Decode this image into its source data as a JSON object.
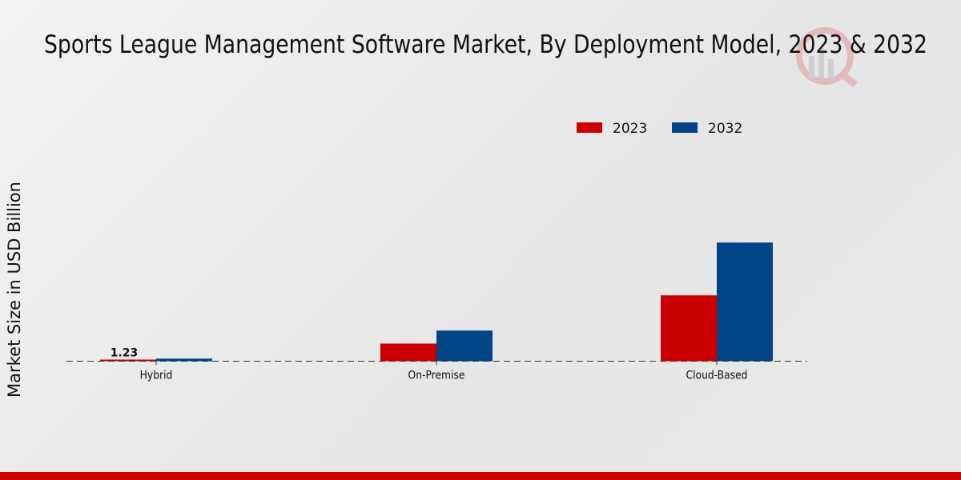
{
  "chart_data": {
    "type": "bar",
    "title": "Sports League Management Software Market, By Deployment Model, 2023 & 2032",
    "xlabel": "",
    "ylabel": "Market Size in USD Billion",
    "categories": [
      "Hybrid",
      "On-Premise",
      "Cloud-Based"
    ],
    "series": [
      {
        "name": "2023",
        "color": "#cc0000",
        "values": [
          1.23,
          13.5,
          50.5
        ]
      },
      {
        "name": "2032",
        "color": "#004488",
        "values": [
          2.0,
          23.5,
          91.0
        ]
      }
    ],
    "data_labels": [
      {
        "series": "2023",
        "category": "Hybrid",
        "text": "1.23"
      }
    ],
    "ylim": [
      0,
      100
    ],
    "grid": false,
    "legend": "top-right"
  }
}
